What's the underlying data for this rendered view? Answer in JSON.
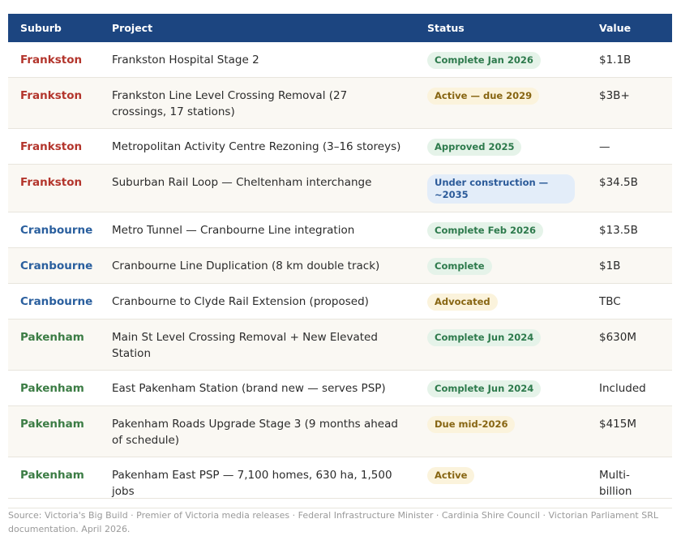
{
  "table": {
    "headers": [
      "Suburb",
      "Project",
      "Status",
      "Value"
    ],
    "rows": [
      [
        "Frankston",
        "Frankston Hospital Stage 2",
        "Complete Jan 2026",
        "$1.1B"
      ],
      [
        "Frankston",
        "Frankston Line Level Crossing Removal (27 crossings, 17 stations)",
        "Active — due 2029",
        "$3B+"
      ],
      [
        "Frankston",
        "Metropolitan Activity Centre Rezoning (3–16 storeys)",
        "Approved 2025",
        "—"
      ],
      [
        "Frankston",
        "Suburban Rail Loop — Cheltenham interchange",
        "Under construction — ~2035",
        "$34.5B"
      ],
      [
        "Cranbourne",
        "Metro Tunnel — Cranbourne Line integration",
        "Complete Feb 2026",
        "$13.5B"
      ],
      [
        "Cranbourne",
        "Cranbourne Line Duplication (8 km double track)",
        "Complete",
        "$1B"
      ],
      [
        "Cranbourne",
        "Cranbourne to Clyde Rail Extension (proposed)",
        "Advocated",
        "TBC"
      ],
      [
        "Pakenham",
        "Main St Level Crossing Removal + New Elevated Station",
        "Complete Jun 2024",
        "$630M"
      ],
      [
        "Pakenham",
        "East Pakenham Station (brand new — serves PSP)",
        "Complete Jun 2024",
        "Included"
      ],
      [
        "Pakenham",
        "Pakenham Roads Upgrade Stage 3 (9 months ahead of schedule)",
        "Due mid-2026",
        "$415M"
      ],
      [
        "Pakenham",
        "Pakenham East PSP — 7,100 homes, 630 ha, 1,500 jobs",
        "Active",
        "Multi-billion"
      ]
    ]
  },
  "source": "Source: Victoria's Big Build · Premier of Victoria media releases · Federal Infrastructure Minister · Cardinia Shire Council · Victorian Parliament SRL documentation. April 2026."
}
